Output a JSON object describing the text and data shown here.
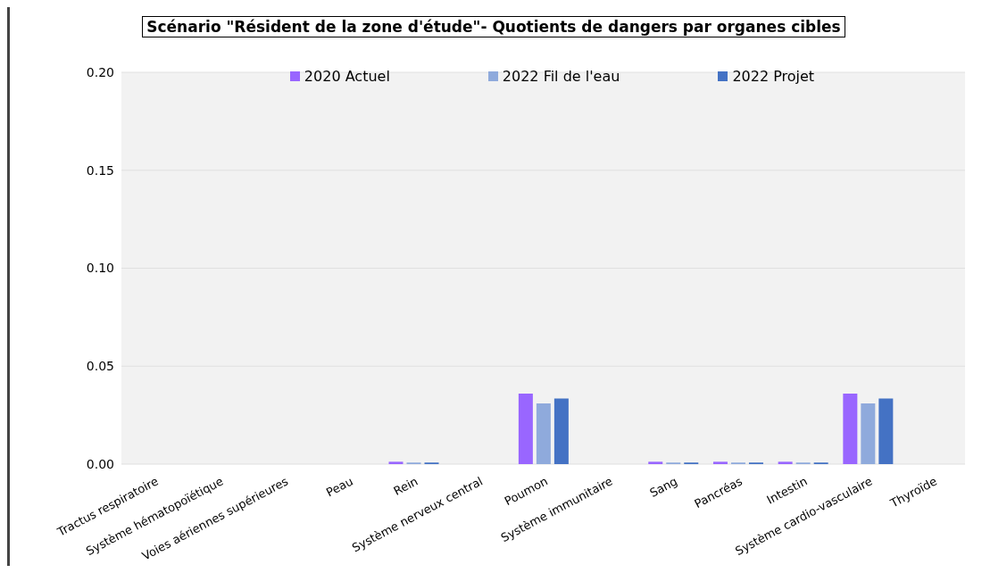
{
  "chart_data": {
    "type": "bar",
    "title": "Scénario \"Résident de la zone d'étude\"- Quotients de dangers par organes cibles",
    "categories": [
      "Tractus respiratoire",
      "Système hématopoïétique",
      "Voies aériennes supérieures",
      "Peau",
      "Rein",
      "Système nerveux central",
      "Poumon",
      "Système immunitaire",
      "Sang",
      "Pancréas",
      "Intestin",
      "Système cardio-vasculaire",
      "Thyroïde"
    ],
    "series": [
      {
        "name": "2020 Actuel",
        "color": "#9966ff",
        "values": [
          0,
          0,
          0,
          0,
          0.0012,
          0,
          0.036,
          0,
          0.0012,
          0.0012,
          0.0012,
          0.036,
          0
        ]
      },
      {
        "name": "2022 Fil de l'eau",
        "color": "#8faadc",
        "values": [
          0,
          0,
          0,
          0,
          0.0008,
          0,
          0.031,
          0,
          0.0008,
          0.0008,
          0.0008,
          0.031,
          0
        ]
      },
      {
        "name": "2022 Projet",
        "color": "#4472c4",
        "values": [
          0,
          0,
          0,
          0,
          0.0008,
          0,
          0.0335,
          0,
          0.0008,
          0.0008,
          0.0008,
          0.0335,
          0
        ]
      }
    ],
    "ylim": [
      0,
      0.2
    ],
    "yticks": [
      {
        "value": 0,
        "label": "0.00"
      },
      {
        "value": 0.05,
        "label": "0.05"
      },
      {
        "value": 0.1,
        "label": "0.10"
      },
      {
        "value": 0.15,
        "label": "0.15"
      },
      {
        "value": 0.2,
        "label": "0.20"
      }
    ],
    "grid": "y",
    "legend": "top"
  }
}
